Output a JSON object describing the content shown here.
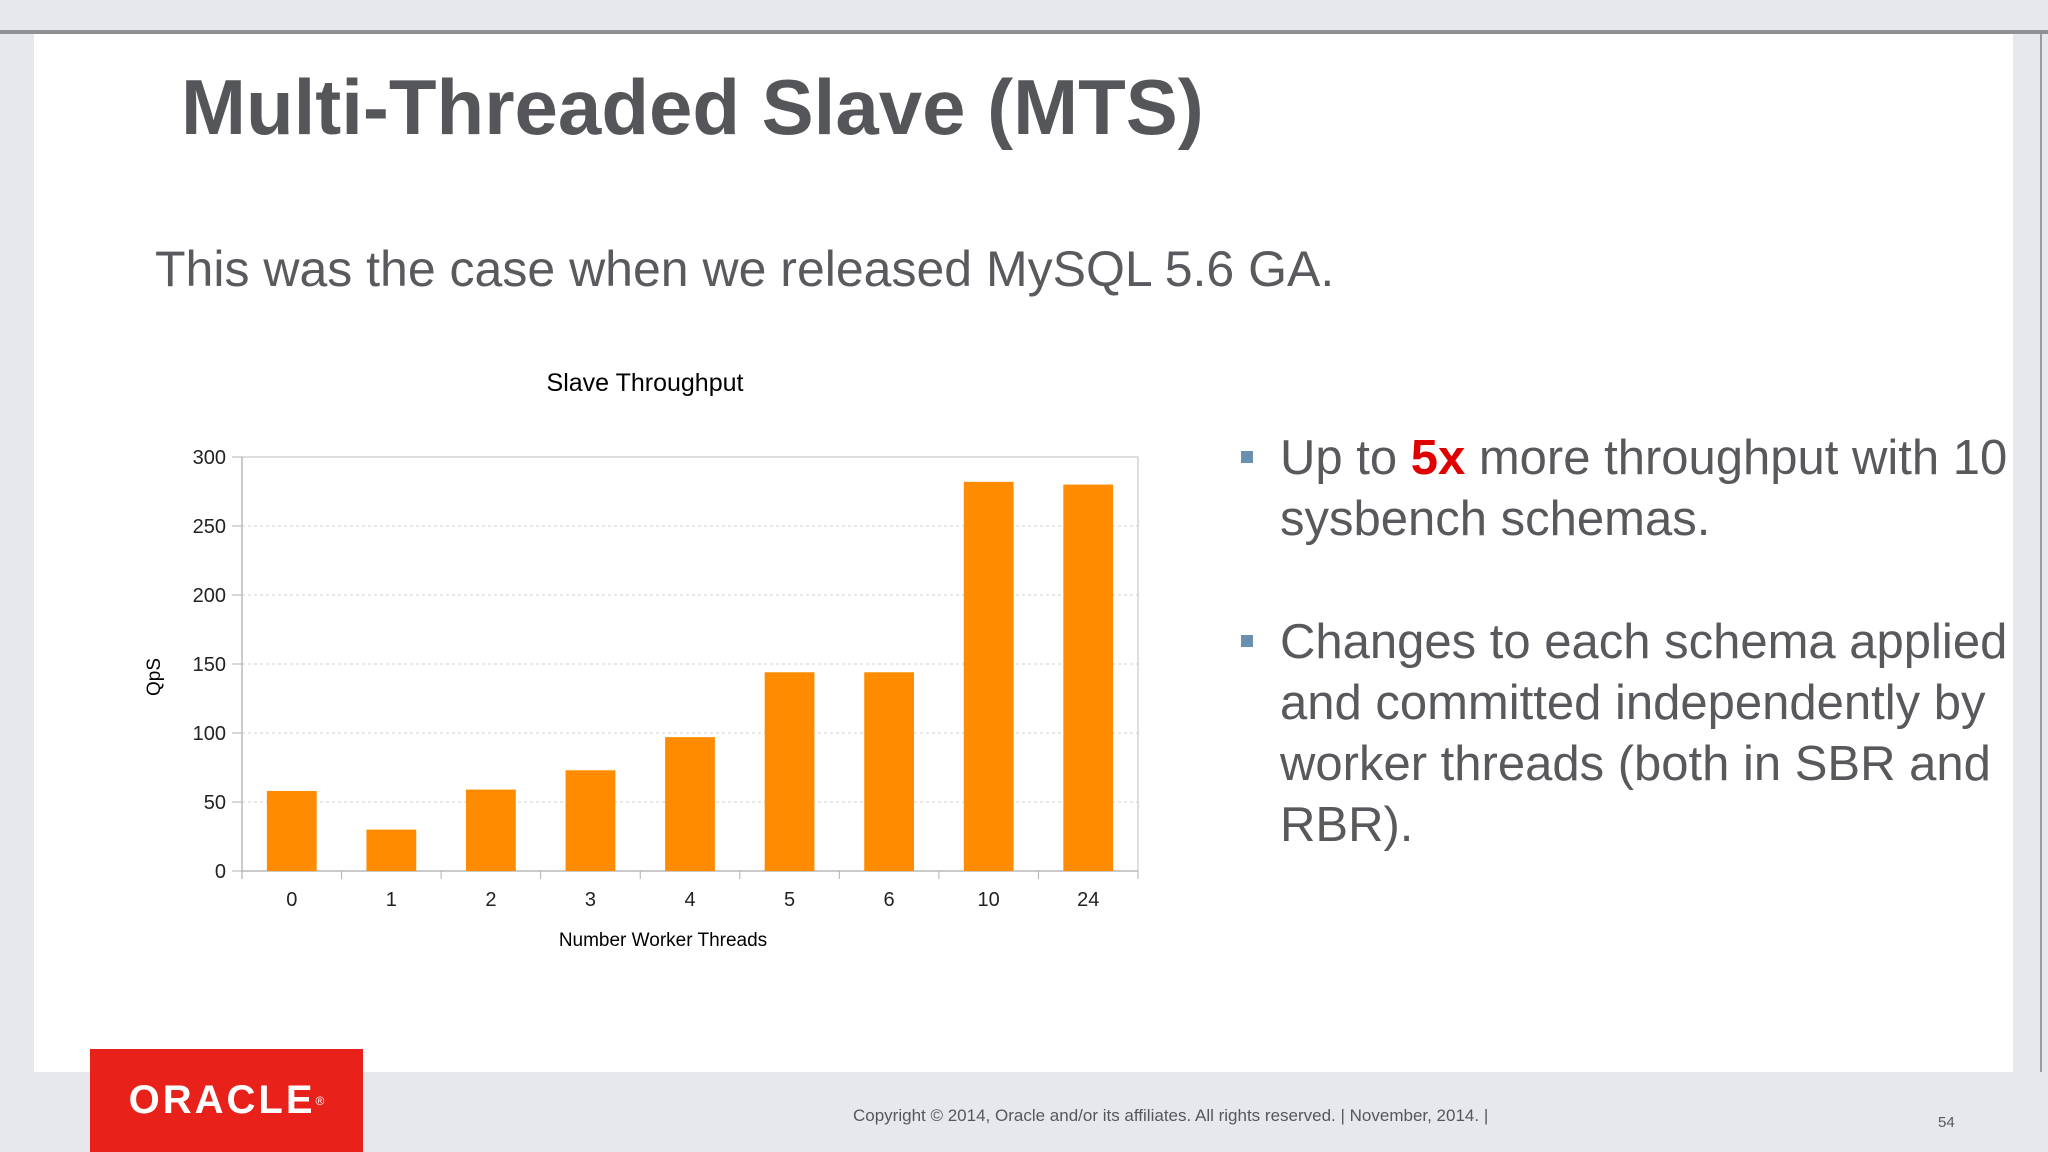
{
  "slide": {
    "title": "Multi-Threaded Slave (MTS)",
    "subtitle": "This was the case when we released MySQL 5.6 GA."
  },
  "chart_data": {
    "type": "bar",
    "title": "Slave Throughput",
    "xlabel": "Number Worker Threads",
    "ylabel": "QpS",
    "categories": [
      "0",
      "1",
      "2",
      "3",
      "4",
      "5",
      "6",
      "10",
      "24"
    ],
    "values": [
      58,
      30,
      59,
      73,
      97,
      144,
      144,
      282,
      280
    ],
    "ylim": [
      0,
      300
    ],
    "yticks": [
      0,
      50,
      100,
      150,
      200,
      250,
      300
    ],
    "grid": true,
    "bar_color": "#ff8c00"
  },
  "bullets": [
    {
      "before": "Up to ",
      "highlight": "5x",
      "after": " more throughput with 10 sysbench schemas."
    },
    {
      "text": "Changes to each schema applied and committed independently by worker threads (both in SBR and RBR)."
    }
  ],
  "colors": {
    "accent": "#e00000",
    "bullet_marker": "#6a8fb0",
    "brand": "#e8221b"
  },
  "footer": {
    "logo_text": "ORACLE",
    "logo_mark": "®",
    "copyright": "Copyright © 2014, Oracle and/or its affiliates. All rights reserved.  |  November, 2014.  |",
    "page_number": "54"
  }
}
